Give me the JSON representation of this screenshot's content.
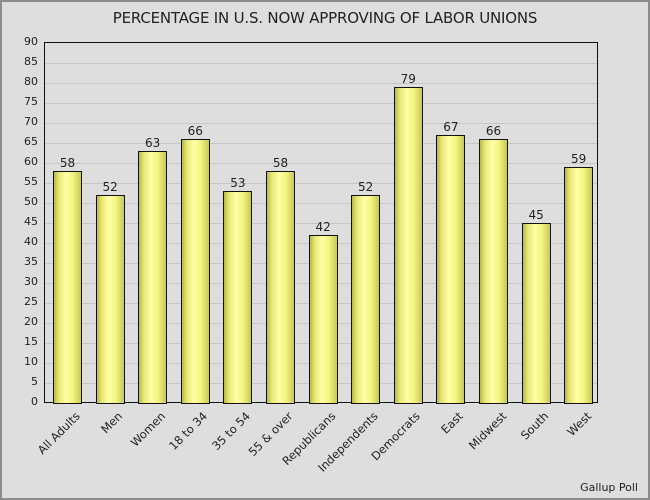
{
  "chart_data": {
    "type": "bar",
    "title": "PERCENTAGE IN U.S. NOW APPROVING OF LABOR UNIONS",
    "xlabel": "",
    "ylabel": "",
    "ylim": [
      0,
      90
    ],
    "yticks": [
      0,
      5,
      10,
      15,
      20,
      25,
      30,
      35,
      40,
      45,
      50,
      55,
      60,
      65,
      70,
      75,
      80,
      85,
      90
    ],
    "grid": true,
    "legend": null,
    "categories": [
      "All Adults",
      "Men",
      "Women",
      "18 to 34",
      "35 to 54",
      "55 & over",
      "Republicans",
      "Independents",
      "Democrats",
      "East",
      "Midwest",
      "South",
      "West"
    ],
    "values": [
      58,
      52,
      63,
      66,
      53,
      58,
      42,
      52,
      79,
      67,
      66,
      45,
      59
    ],
    "bar_color": "#ffff99",
    "source": "Gallup Poll"
  }
}
